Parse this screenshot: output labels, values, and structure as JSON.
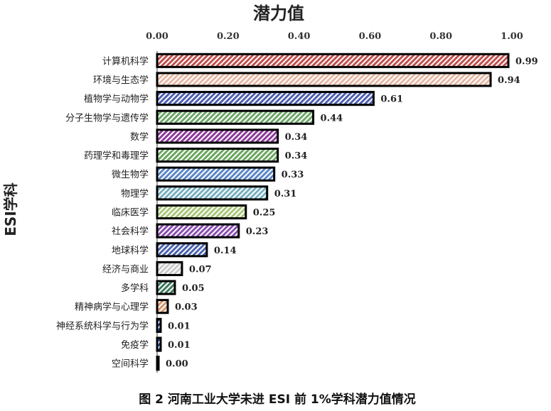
{
  "chart_data": {
    "type": "bar",
    "orientation": "horizontal",
    "title": "潜力值",
    "ylabel": "ESI学科",
    "caption": "图 2  河南工业大学未进 ESI 前 1%学科潜力值情况",
    "xlim": [
      0,
      1.0
    ],
    "xticks": [
      "0.00",
      "0.20",
      "0.40",
      "0.60",
      "0.80",
      "1.00"
    ],
    "xaxis_position": "top",
    "grid": false,
    "legend": "none",
    "categories": [
      "计算机科学",
      "环境与生态学",
      "植物学与动物学",
      "分子生物学与遗传学",
      "数学",
      "药理学和毒理学",
      "微生物学",
      "物理学",
      "临床医学",
      "社会科学",
      "地球科学",
      "经济与商业",
      "多学科",
      "精神病学与心理学",
      "神经系统科学与行为学",
      "免疫学",
      "空间科学"
    ],
    "values": [
      0.99,
      0.94,
      0.61,
      0.44,
      0.34,
      0.34,
      0.33,
      0.31,
      0.25,
      0.23,
      0.14,
      0.07,
      0.05,
      0.03,
      0.01,
      0.01,
      0.0
    ],
    "value_labels": [
      "0.99",
      "0.94",
      "0.61",
      "0.44",
      "0.34",
      "0.34",
      "0.33",
      "0.31",
      "0.25",
      "0.23",
      "0.14",
      "0.07",
      "0.05",
      "0.03",
      "0.01",
      "0.01",
      "0.00"
    ],
    "colors": [
      "#c0504d",
      "#e6b9a6",
      "#4f5fb0",
      "#6fa86a",
      "#8e3a9c",
      "#6aa65e",
      "#5b87c8",
      "#78b0c2",
      "#a8c77a",
      "#8a4fb0",
      "#4a63b0",
      "#c9c9c9",
      "#3b7a5a",
      "#d9946a",
      "#1f3f8a",
      "#1f4fa0",
      "#2a4f9a"
    ]
  }
}
